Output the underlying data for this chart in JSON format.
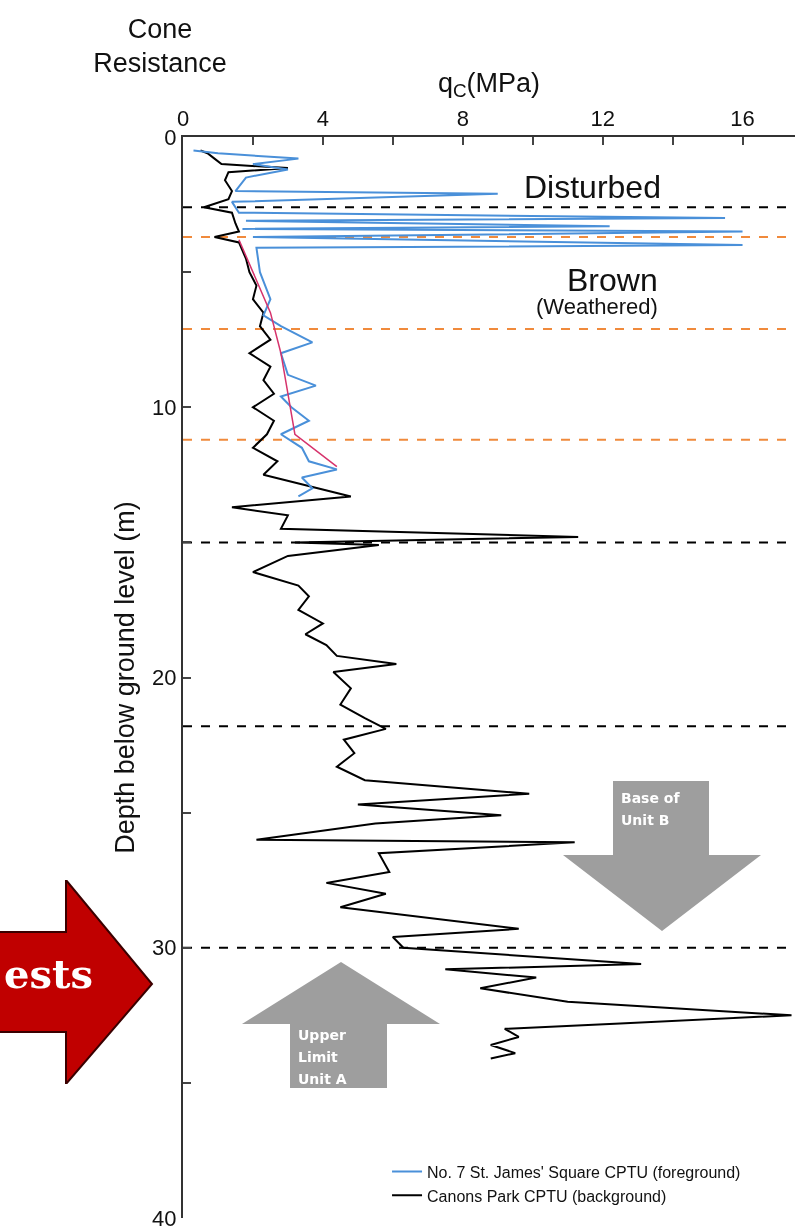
{
  "chart_data": {
    "type": "line",
    "title": "Cone Resistance",
    "xlabel": "q$_{C}$(MPa)",
    "ylabel": "Depth below ground level (m)",
    "xlim": [
      0,
      17.5
    ],
    "xticks": [
      0,
      {
        "value": 2,
        "label": null
      },
      4,
      {
        "value": 6,
        "label": null
      },
      8,
      {
        "value": 10,
        "label": null
      },
      12,
      {
        "value": 14,
        "label": null
      },
      16
    ],
    "ylim": [
      40,
      0
    ],
    "yticks": [
      0,
      {
        "value": 5,
        "label": null
      },
      10,
      {
        "value": 15,
        "label": null
      },
      20,
      {
        "value": 25,
        "label": null
      },
      30,
      {
        "value": 35,
        "label": null
      },
      40
    ],
    "grid": false,
    "legend": "bottom right",
    "marker": "none",
    "line_style": "solid",
    "series": [
      {
        "name": "Canons Park CPTU (background)",
        "color": "#000000",
        "x": [
          0.5,
          0.7,
          0.9,
          1.1,
          3.0,
          1.3,
          1.2,
          1.4,
          1.3,
          0.6,
          1.4,
          1.5,
          1.6,
          0.9,
          1.6,
          1.8,
          1.9,
          2.1,
          2.0,
          2.3,
          2.2,
          2.5,
          1.9,
          2.5,
          2.3,
          2.6,
          2.0,
          2.6,
          2.4,
          2.0,
          2.7,
          2.3,
          4.8,
          1.4,
          3.0,
          2.8,
          11.3,
          3.2,
          5.6,
          3.0,
          2.0,
          3.3,
          3.6,
          3.3,
          4.0,
          3.5,
          4.1,
          4.4,
          6.1,
          4.3,
          4.8,
          4.5,
          5.2,
          5.8,
          4.6,
          4.9,
          4.4,
          5.2,
          9.9,
          5.0,
          9.1,
          5.5,
          2.1,
          11.2,
          5.6,
          5.9,
          4.1,
          5.8,
          4.5,
          9.6,
          6.0,
          6.3,
          13.1,
          7.5,
          10.1,
          8.5,
          11.0,
          17.4,
          12.5,
          9.2,
          9.6,
          8.8,
          9.5,
          8.8
        ],
        "values": [
          0.5,
          0.6,
          0.8,
          1.0,
          1.15,
          1.3,
          1.6,
          2.0,
          2.3,
          2.6,
          2.8,
          3.2,
          3.5,
          3.7,
          3.9,
          4.5,
          5.0,
          5.5,
          6.0,
          6.5,
          7.0,
          7.5,
          8.0,
          8.5,
          9.0,
          9.5,
          10.0,
          10.5,
          11.0,
          11.5,
          12.0,
          12.5,
          13.3,
          13.7,
          14.0,
          14.5,
          14.8,
          15.0,
          15.1,
          15.5,
          16.1,
          16.6,
          17.0,
          17.5,
          18.0,
          18.4,
          18.8,
          19.2,
          19.5,
          19.8,
          20.4,
          21.0,
          21.5,
          21.9,
          22.3,
          22.8,
          23.3,
          23.8,
          24.3,
          24.7,
          25.1,
          25.4,
          26.0,
          26.1,
          26.5,
          27.2,
          27.6,
          28.0,
          28.5,
          29.3,
          29.6,
          30.0,
          30.6,
          30.8,
          31.1,
          31.5,
          32.0,
          32.5,
          32.8,
          33.0,
          33.3,
          33.6,
          33.9,
          34.1
        ]
      },
      {
        "name": "No. 7 St. James' Square CPTU (foreground)",
        "color": "#4a90d9",
        "x": [
          0.3,
          1.0,
          3.3,
          2.0,
          3.0,
          1.8,
          1.5,
          9.0,
          1.4,
          1.6,
          15.5,
          1.8,
          12.2,
          1.7,
          16,
          2.0,
          16,
          2.1,
          2.2,
          2.5,
          2.3,
          2.8,
          3.7,
          2.8,
          3.0,
          3.8,
          2.8,
          3.1,
          3.6,
          2.8,
          3.4,
          3.6,
          4.4,
          3.4,
          3.7,
          3.3
        ],
        "values": [
          0.5,
          0.6,
          0.8,
          1.0,
          1.2,
          1.5,
          2.0,
          2.1,
          2.4,
          2.8,
          3.0,
          3.1,
          3.3,
          3.4,
          3.5,
          3.7,
          4.0,
          4.1,
          5.0,
          6.0,
          6.6,
          7.0,
          7.6,
          8.0,
          8.8,
          9.2,
          9.6,
          10.0,
          10.5,
          11.0,
          11.5,
          12.0,
          12.3,
          12.6,
          13.0,
          13.3
        ]
      },
      {
        "color": "#d6336c",
        "x": [
          1.6,
          2.0,
          2.5,
          2.8,
          3.0,
          3.2,
          4.4
        ],
        "values": [
          3.8,
          5.0,
          6.5,
          8.0,
          9.5,
          11.0,
          12.2
        ]
      }
    ],
    "ref_lines": [
      {
        "axis": "y",
        "value": 2.6,
        "color": "#000000",
        "line_style": "dashed"
      },
      {
        "axis": "y",
        "value": 15,
        "color": "#000000",
        "line_style": "dashed"
      },
      {
        "axis": "y",
        "value": 21.8,
        "color": "#000000",
        "line_style": "dashed"
      },
      {
        "axis": "y",
        "value": 30,
        "color": "#000000",
        "line_style": "dashed"
      },
      {
        "axis": "y",
        "value": 3.7,
        "color": "#f08a3c",
        "line_style": "dashed"
      },
      {
        "axis": "y",
        "value": 7.1,
        "color": "#f08a3c",
        "line_style": "dashed"
      },
      {
        "axis": "y",
        "value": 11.2,
        "color": "#f08a3c",
        "line_style": "dashed"
      }
    ],
    "annotations": [
      "Disturbed",
      "Brown",
      "(Weathered)",
      "Base of Unit B",
      "Upper Limit Unit A",
      "ests"
    ]
  }
}
